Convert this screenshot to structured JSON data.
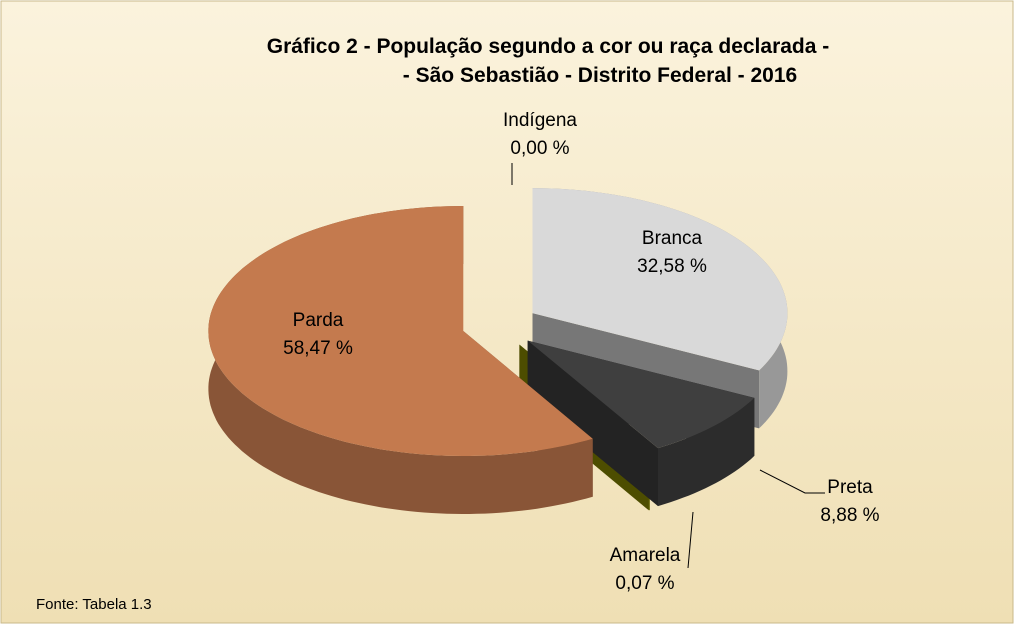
{
  "chart_data": {
    "type": "pie",
    "title": [
      "Gráfico 2 - População segundo a cor ou raça declarada -",
      "- São Sebastião - Distrito Federal - 2016"
    ],
    "source": "Fonte: Tabela 1.3",
    "categories": [
      "Branca",
      "Preta",
      "Amarela",
      "Indígena",
      "Parda"
    ],
    "values": [
      32.58,
      8.88,
      0.07,
      0.0,
      58.47
    ],
    "value_labels": [
      "32,58 %",
      "8,88 %",
      "0,07 %",
      "0,00 %",
      "58,47 %"
    ],
    "colors": [
      "#d9d9d9",
      "#3f3f3f",
      "#8c8c00",
      "#4f81bd",
      "#c47a4e"
    ]
  }
}
